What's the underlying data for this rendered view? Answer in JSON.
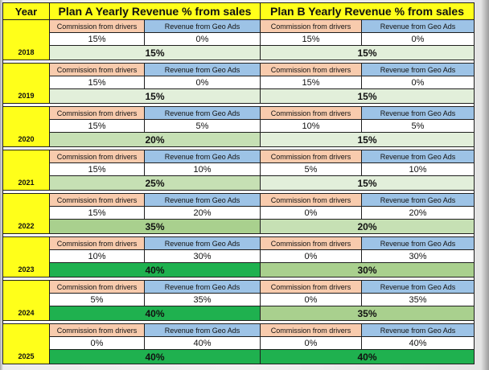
{
  "header": {
    "year": "Year",
    "plan_a": "Plan A Yearly Revenue % from sales",
    "plan_b": "Plan B Yearly Revenue % from sales"
  },
  "labels": {
    "commission": "Commission from drivers",
    "geo_ads": "Revenue from Geo Ads"
  },
  "total_colors": {
    "pale": "#e2efda",
    "light": "#c6e0b4",
    "medium": "#a9d08e",
    "strong": "#1fb14f"
  },
  "rows": [
    {
      "year": "2018",
      "a_commission": "15%",
      "a_geo": "0%",
      "a_total": "15%",
      "a_shade": "pale",
      "b_commission": "15%",
      "b_geo": "0%",
      "b_total": "15%",
      "b_shade": "pale"
    },
    {
      "year": "2019",
      "a_commission": "15%",
      "a_geo": "0%",
      "a_total": "15%",
      "a_shade": "pale",
      "b_commission": "15%",
      "b_geo": "0%",
      "b_total": "15%",
      "b_shade": "pale"
    },
    {
      "year": "2020",
      "a_commission": "15%",
      "a_geo": "5%",
      "a_total": "20%",
      "a_shade": "light",
      "b_commission": "10%",
      "b_geo": "5%",
      "b_total": "15%",
      "b_shade": "pale"
    },
    {
      "year": "2021",
      "a_commission": "15%",
      "a_geo": "10%",
      "a_total": "25%",
      "a_shade": "light",
      "b_commission": "5%",
      "b_geo": "10%",
      "b_total": "15%",
      "b_shade": "pale"
    },
    {
      "year": "2022",
      "a_commission": "15%",
      "a_geo": "20%",
      "a_total": "35%",
      "a_shade": "medium",
      "b_commission": "0%",
      "b_geo": "20%",
      "b_total": "20%",
      "b_shade": "light"
    },
    {
      "year": "2023",
      "a_commission": "10%",
      "a_geo": "30%",
      "a_total": "40%",
      "a_shade": "strong",
      "b_commission": "0%",
      "b_geo": "30%",
      "b_total": "30%",
      "b_shade": "medium"
    },
    {
      "year": "2024",
      "a_commission": "5%",
      "a_geo": "35%",
      "a_total": "40%",
      "a_shade": "strong",
      "b_commission": "0%",
      "b_geo": "35%",
      "b_total": "35%",
      "b_shade": "medium"
    },
    {
      "year": "2025",
      "a_commission": "0%",
      "a_geo": "40%",
      "a_total": "40%",
      "a_shade": "strong",
      "b_commission": "0%",
      "b_geo": "40%",
      "b_total": "40%",
      "b_shade": "strong"
    }
  ]
}
